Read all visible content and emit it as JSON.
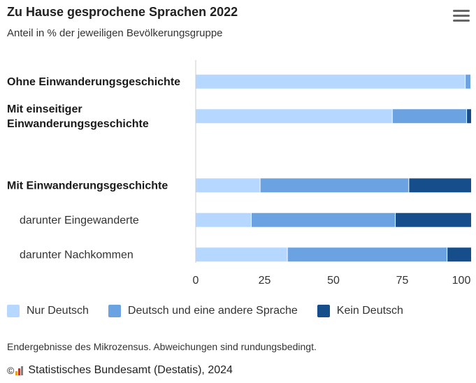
{
  "header": {
    "title": "Zu Hause gesprochene Sprachen 2022",
    "subtitle": "Anteil in % der jeweiligen Bevölkerungsgruppe"
  },
  "menu": {
    "icon": "hamburger-menu-icon"
  },
  "chart_data": {
    "type": "bar",
    "orientation": "horizontal",
    "stacked": true,
    "title": "Zu Hause gesprochene Sprachen 2022",
    "subtitle": "Anteil in % der jeweiligen Bevölkerungsgruppe",
    "categories": [
      [
        "Ohne Einwanderungsgeschichte"
      ],
      [
        "Mit einseitiger",
        "Einwanderungsgeschichte"
      ],
      [
        ""
      ],
      [
        "Mit Einwanderungsgeschichte"
      ],
      [
        "darunter Eingewanderte"
      ],
      [
        "darunter Nachkommen"
      ]
    ],
    "category_bold": [
      true,
      true,
      false,
      true,
      false,
      false
    ],
    "category_indent": [
      false,
      false,
      false,
      false,
      true,
      true
    ],
    "series": [
      {
        "name": "Nur Deutsch",
        "color": "#b6d7ff",
        "values": [
          98,
          71.5,
          null,
          23.5,
          20.3,
          33.4
        ]
      },
      {
        "name": "Deutsch und eine andere Sprache",
        "color": "#6aa2e2",
        "values": [
          2,
          27,
          null,
          54,
          52.3,
          58
        ]
      },
      {
        "name": "Kein Deutsch",
        "color": "#164e8b",
        "values": [
          0,
          1.5,
          null,
          22.5,
          27.4,
          8.6
        ]
      }
    ],
    "xlim": [
      0,
      100
    ],
    "xticks": [
      0,
      25,
      50,
      75,
      100
    ],
    "grid": false,
    "legend_position": "bottom"
  },
  "legend": [
    {
      "label": "Nur Deutsch",
      "color": "#b6d7ff"
    },
    {
      "label": "Deutsch und eine andere Sprache",
      "color": "#6aa2e2"
    },
    {
      "label": "Kein Deutsch",
      "color": "#164e8b"
    }
  ],
  "footer": {
    "note": "Endergebnisse des Mikrozensus. Abweichungen sind rundungsbedingt.",
    "copyright_symbol": "©",
    "source": "Statistisches Bundesamt (Destatis), 2024",
    "logo_colors": [
      "#e4a21a",
      "#c0392b",
      "#7f7f7f"
    ]
  }
}
